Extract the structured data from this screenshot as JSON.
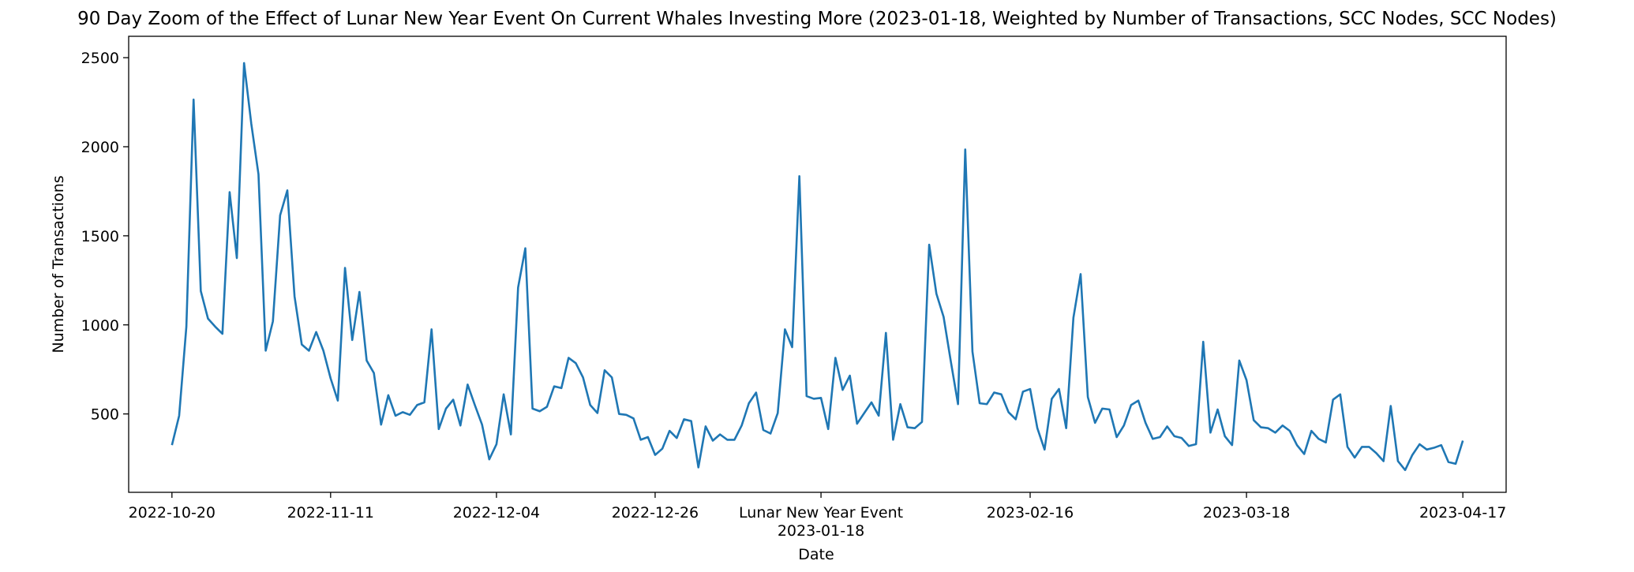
{
  "chart_data": {
    "type": "line",
    "title": "90 Day Zoom of the Effect of Lunar New Year Event On Current Whales Investing More (2023-01-18, Weighted by Number of Transactions, SCC Nodes, SCC Nodes)",
    "xlabel": "Date",
    "ylabel": "Number of Transactions",
    "xlim": [
      "2022-10-14",
      "2023-04-23"
    ],
    "ylim": [
      60,
      2620
    ],
    "grid": false,
    "series_color": "#1f77b4",
    "x_ticks": [
      {
        "date": "2022-10-20",
        "label": "2022-10-20"
      },
      {
        "date": "2022-11-11",
        "label": "2022-11-11"
      },
      {
        "date": "2022-12-04",
        "label": "2022-12-04"
      },
      {
        "date": "2022-12-26",
        "label": "2022-12-26"
      },
      {
        "date": "2023-01-18",
        "label": "Lunar New Year Event",
        "label2": "2023-01-18"
      },
      {
        "date": "2023-02-16",
        "label": "2023-02-16"
      },
      {
        "date": "2023-03-18",
        "label": "2023-03-18"
      },
      {
        "date": "2023-04-17",
        "label": "2023-04-17"
      }
    ],
    "y_ticks": [
      500,
      1000,
      1500,
      2000,
      2500
    ],
    "series": [
      {
        "x_start": "2022-10-20",
        "x_end": "2023-04-17",
        "values": [
          325,
          490,
          990,
          2265,
          1190,
          1035,
          990,
          950,
          1745,
          1375,
          2470,
          2130,
          1845,
          855,
          1020,
          1615,
          1755,
          1160,
          890,
          855,
          960,
          855,
          700,
          575,
          1320,
          915,
          1185,
          800,
          730,
          440,
          605,
          490,
          510,
          495,
          550,
          565,
          975,
          415,
          530,
          580,
          435,
          665,
          550,
          440,
          245,
          330,
          610,
          385,
          1210,
          1430,
          530,
          515,
          540,
          655,
          645,
          815,
          785,
          705,
          550,
          505,
          745,
          705,
          500,
          495,
          475,
          355,
          370,
          270,
          305,
          405,
          365,
          470,
          460,
          200,
          430,
          350,
          385,
          355,
          355,
          435,
          560,
          620,
          410,
          390,
          505,
          975,
          875,
          1835,
          600,
          585,
          590,
          415,
          815,
          635,
          715,
          445,
          505,
          565,
          490,
          955,
          355,
          555,
          425,
          420,
          455,
          1450,
          1175,
          1045,
          795,
          555,
          1985,
          850,
          560,
          555,
          620,
          610,
          510,
          470,
          625,
          640,
          420,
          300,
          585,
          640,
          420,
          1040,
          1285,
          595,
          450,
          530,
          525,
          370,
          435,
          550,
          575,
          450,
          360,
          370,
          430,
          375,
          365,
          320,
          330,
          905,
          395,
          525,
          375,
          325,
          800,
          690,
          465,
          425,
          420,
          395,
          435,
          405,
          325,
          275,
          405,
          360,
          340,
          580,
          610,
          315,
          255,
          315,
          315,
          280,
          235,
          545,
          235,
          185,
          270,
          330,
          300,
          310,
          325,
          230,
          220,
          350
        ]
      }
    ]
  }
}
